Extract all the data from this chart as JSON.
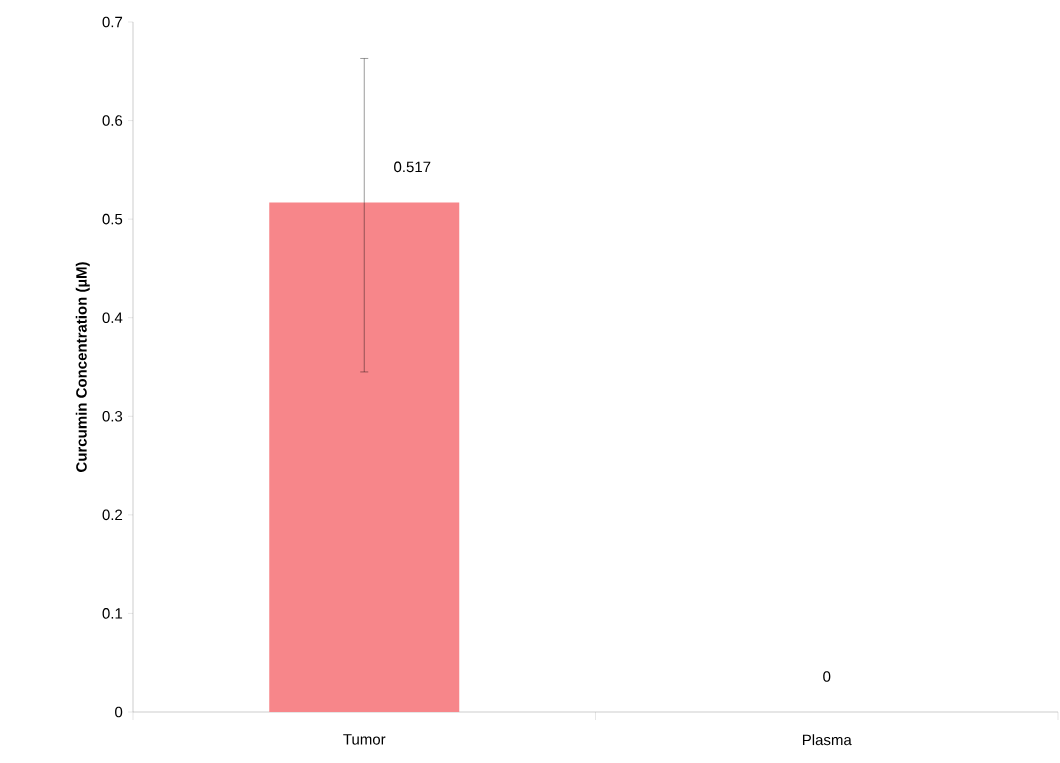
{
  "chart_data": {
    "type": "bar",
    "ylabel": "Curcumin Concentration (µM)",
    "categories": [
      "Tumor",
      "Plasma"
    ],
    "values": [
      0.517,
      0
    ],
    "errors": [
      [
        0.345,
        0.663
      ],
      null
    ],
    "color": "#f7868a",
    "ylim": [
      0,
      0.7
    ],
    "yticks": [
      0,
      0.1,
      0.2,
      0.3,
      0.4,
      0.5,
      0.6,
      0.7
    ],
    "data_labels": true
  }
}
